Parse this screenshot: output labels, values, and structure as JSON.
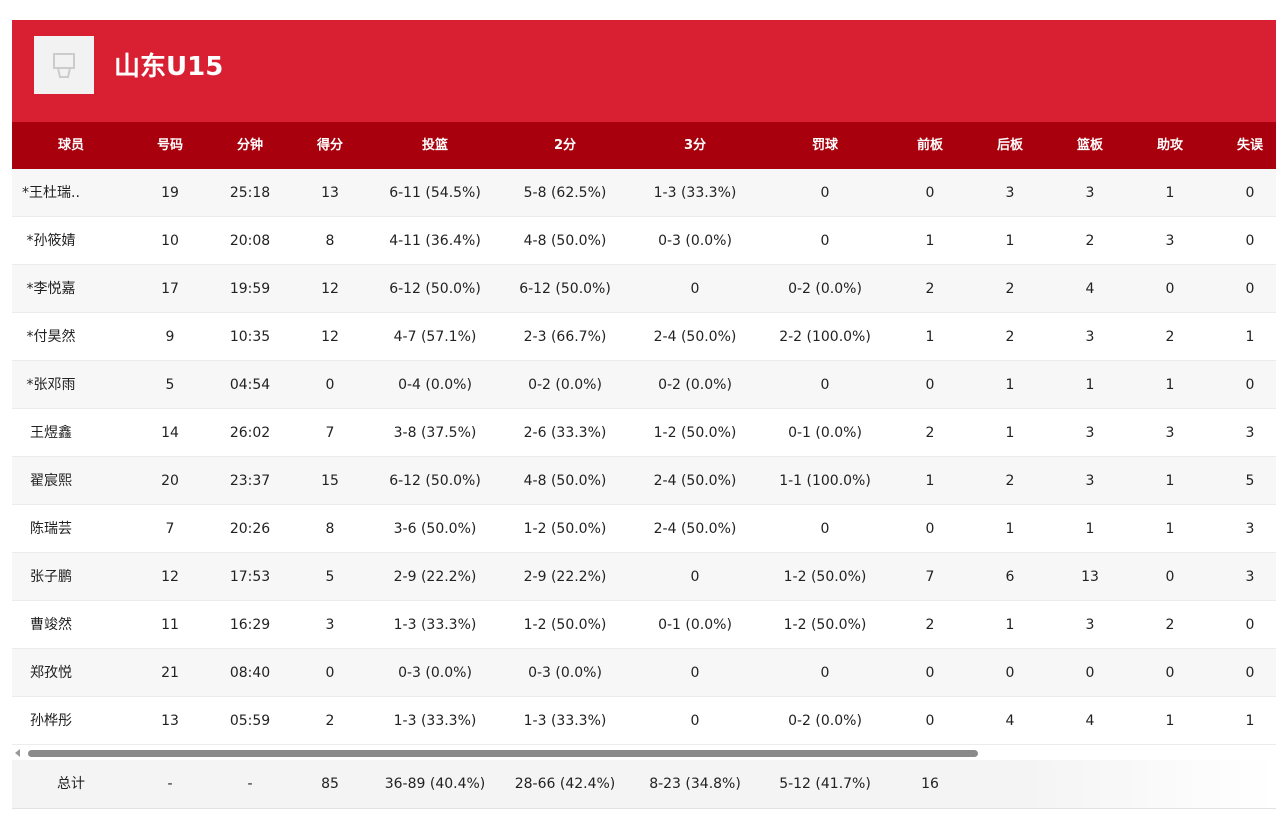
{
  "header": {
    "title": "山东U15"
  },
  "table": {
    "columns": [
      "球员",
      "号码",
      "分钟",
      "得分",
      "投篮",
      "2分",
      "3分",
      "罚球",
      "前板",
      "后板",
      "篮板",
      "助攻",
      "失误"
    ],
    "rows": [
      [
        "*王杜瑞..",
        "19",
        "25:18",
        "13",
        "6-11 (54.5%)",
        "5-8 (62.5%)",
        "1-3 (33.3%)",
        "0",
        "0",
        "3",
        "3",
        "1",
        "0"
      ],
      [
        "*孙筱婧",
        "10",
        "20:08",
        "8",
        "4-11 (36.4%)",
        "4-8 (50.0%)",
        "0-3 (0.0%)",
        "0",
        "1",
        "1",
        "2",
        "3",
        "0"
      ],
      [
        "*李悦嘉",
        "17",
        "19:59",
        "12",
        "6-12 (50.0%)",
        "6-12 (50.0%)",
        "0",
        "0-2 (0.0%)",
        "2",
        "2",
        "4",
        "0",
        "0"
      ],
      [
        "*付昊然",
        "9",
        "10:35",
        "12",
        "4-7 (57.1%)",
        "2-3 (66.7%)",
        "2-4 (50.0%)",
        "2-2 (100.0%)",
        "1",
        "2",
        "3",
        "2",
        "1"
      ],
      [
        "*张邓雨",
        "5",
        "04:54",
        "0",
        "0-4 (0.0%)",
        "0-2 (0.0%)",
        "0-2 (0.0%)",
        "0",
        "0",
        "1",
        "1",
        "1",
        "0"
      ],
      [
        "王煜鑫",
        "14",
        "26:02",
        "7",
        "3-8 (37.5%)",
        "2-6 (33.3%)",
        "1-2 (50.0%)",
        "0-1 (0.0%)",
        "2",
        "1",
        "3",
        "3",
        "3"
      ],
      [
        "翟宸熙",
        "20",
        "23:37",
        "15",
        "6-12 (50.0%)",
        "4-8 (50.0%)",
        "2-4 (50.0%)",
        "1-1 (100.0%)",
        "1",
        "2",
        "3",
        "1",
        "5"
      ],
      [
        "陈瑞芸",
        "7",
        "20:26",
        "8",
        "3-6 (50.0%)",
        "1-2 (50.0%)",
        "2-4 (50.0%)",
        "0",
        "0",
        "1",
        "1",
        "1",
        "3"
      ],
      [
        "张子鹏",
        "12",
        "17:53",
        "5",
        "2-9 (22.2%)",
        "2-9 (22.2%)",
        "0",
        "1-2 (50.0%)",
        "7",
        "6",
        "13",
        "0",
        "3"
      ],
      [
        "曹竣然",
        "11",
        "16:29",
        "3",
        "1-3 (33.3%)",
        "1-2 (50.0%)",
        "0-1 (0.0%)",
        "1-2 (50.0%)",
        "2",
        "1",
        "3",
        "2",
        "0"
      ],
      [
        "郑孜悦",
        "21",
        "08:40",
        "0",
        "0-3 (0.0%)",
        "0-3 (0.0%)",
        "0",
        "0",
        "0",
        "0",
        "0",
        "0",
        "0"
      ],
      [
        "孙桦彤",
        "13",
        "05:59",
        "2",
        "1-3 (33.3%)",
        "1-3 (33.3%)",
        "0",
        "0-2 (0.0%)",
        "0",
        "4",
        "4",
        "1",
        "1"
      ]
    ],
    "total": [
      "总计",
      "-",
      "-",
      "85",
      "36-89 (40.4%)",
      "28-66 (42.4%)",
      "8-23 (34.8%)",
      "5-12 (41.7%)",
      "16"
    ]
  }
}
